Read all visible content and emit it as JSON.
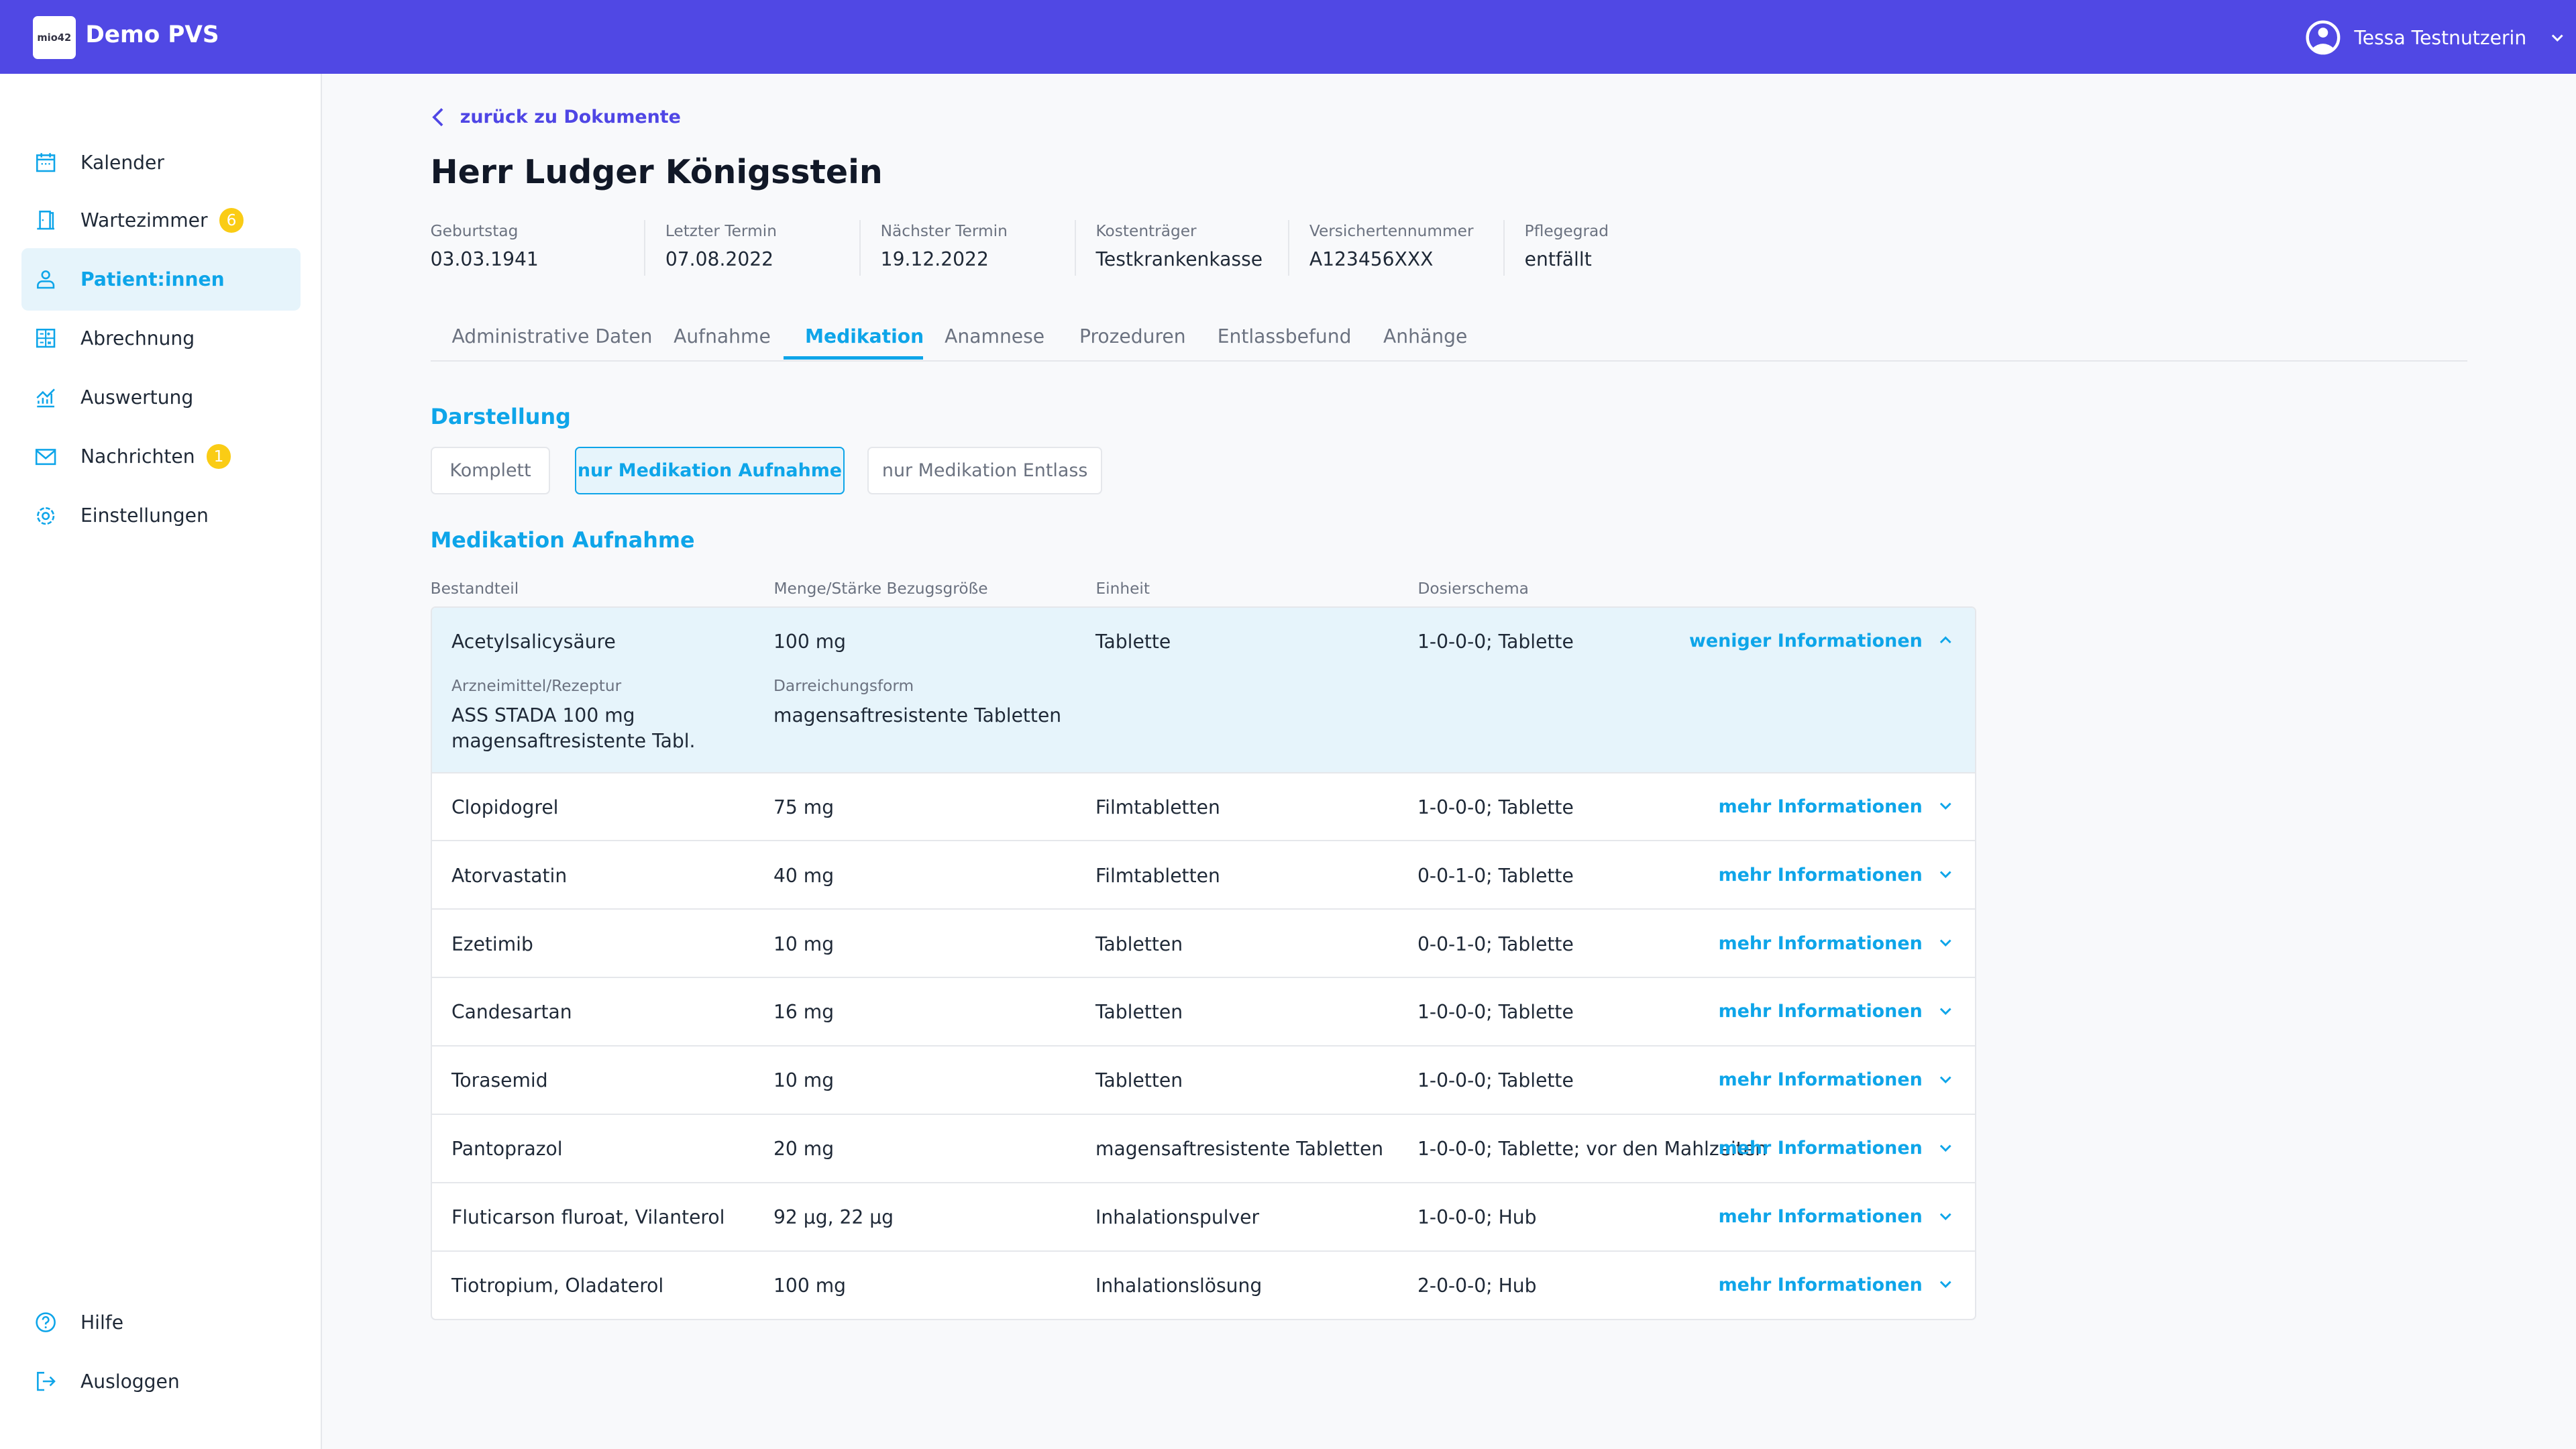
{
  "header": {
    "app_title": "Demo PVS",
    "logo_text": "mio42",
    "user_name": "Tessa Testnutzerin",
    "color": "#5048E4"
  },
  "sidebar": {
    "items": [
      {
        "label": "Kalender",
        "icon": "calendar-icon"
      },
      {
        "label": "Wartezimmer",
        "icon": "door-icon",
        "badge": "6"
      },
      {
        "label": "Patient:innen",
        "icon": "user-icon",
        "active": true
      },
      {
        "label": "Abrechnung",
        "icon": "calculator-icon"
      },
      {
        "label": "Auswertung",
        "icon": "chart-icon"
      },
      {
        "label": "Nachrichten",
        "icon": "mail-icon",
        "badge": "1"
      },
      {
        "label": "Einstellungen",
        "icon": "gear-icon"
      }
    ],
    "bottom": [
      {
        "label": "Hilfe",
        "icon": "help-icon"
      },
      {
        "label": "Ausloggen",
        "icon": "logout-icon"
      }
    ]
  },
  "main": {
    "back_link": "zurück zu Dokumente",
    "patient_name": "Herr Ludger Königsstein",
    "info": [
      {
        "label": "Geburtstag",
        "value": "03.03.1941"
      },
      {
        "label": "Letzter Termin",
        "value": "07.08.2022"
      },
      {
        "label": "Nächster Termin",
        "value": "19.12.2022"
      },
      {
        "label": "Kostenträger",
        "value": "Testkrankenkasse"
      },
      {
        "label": "Versichertennummer",
        "value": "A123456XXX"
      },
      {
        "label": "Pflegegrad",
        "value": "entfällt"
      }
    ],
    "tabs": [
      "Administrative Daten",
      "Aufnahme",
      "Medikation",
      "Anamnese",
      "Prozeduren",
      "Entlassbefund",
      "Anhänge"
    ],
    "active_tab": "Medikation",
    "display_heading": "Darstellung",
    "display_buttons": [
      "Komplett",
      "nur Medikation Aufnahme",
      "nur Medikation Entlass"
    ],
    "active_display": "nur Medikation Aufnahme",
    "section_heading": "Medikation Aufnahme",
    "table": {
      "headers": [
        "Bestandteil",
        "Menge/Stärke Bezugsgröße",
        "Einheit",
        "Dosierschema"
      ],
      "expanded": {
        "label_drug": "Arzneimittel/Rezeptur",
        "drug": "ASS STADA 100 mg magensaftresistente Tabl.",
        "label_form": "Darreichungsform",
        "form": "magensaftresistente Tabletten",
        "less_label": "weniger Informationen"
      },
      "more_label": "mehr Informationen",
      "rows": [
        [
          "Acetylsalicysäure",
          "100 mg",
          "Tablette",
          "1-0-0-0; Tablette"
        ],
        [
          "Clopidogrel",
          "75 mg",
          "Filmtabletten",
          "1-0-0-0; Tablette"
        ],
        [
          "Atorvastatin",
          "40 mg",
          "Filmtabletten",
          "0-0-1-0; Tablette"
        ],
        [
          "Ezetimib",
          "10 mg",
          "Tabletten",
          "0-0-1-0; Tablette"
        ],
        [
          "Candesartan",
          "16 mg",
          "Tabletten",
          "1-0-0-0; Tablette"
        ],
        [
          "Torasemid",
          "10 mg",
          "Tabletten",
          "1-0-0-0; Tablette"
        ],
        [
          "Pantoprazol",
          "20 mg",
          "magensaftresistente Tabletten",
          "1-0-0-0; Tablette; vor den Mahlzeiten"
        ],
        [
          "Fluticarson fluroat, Vilanterol",
          "92 µg, 22 µg",
          "Inhalationspulver",
          "1-0-0-0; Hub"
        ],
        [
          "Tiotropium, Oladaterol",
          "100 mg",
          "Inhalationslösung",
          "2-0-0-0; Hub"
        ]
      ]
    }
  }
}
